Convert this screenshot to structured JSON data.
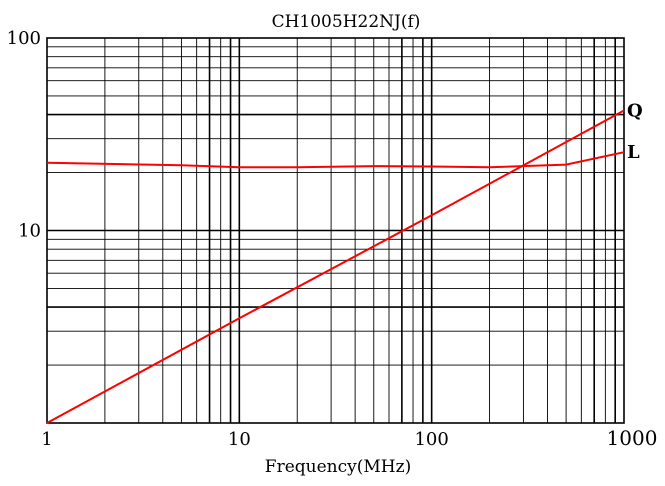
{
  "chart_data": {
    "type": "line",
    "title": "CH1005H22NJ(f)",
    "xlabel": "Frequency(MHz)",
    "ylabel": "",
    "x_scale": "log",
    "y_scale": "log",
    "xlim": [
      1,
      1000
    ],
    "ylim": [
      1,
      100
    ],
    "x_tick_labels": [
      "1",
      "10",
      "100",
      "1000"
    ],
    "y_tick_labels": [
      "10",
      "100"
    ],
    "grid": true,
    "series": [
      {
        "name": "Q",
        "color": "#ff0000",
        "x": [
          1,
          10,
          100,
          1000
        ],
        "y": [
          1.0,
          3.5,
          12.0,
          42.0
        ]
      },
      {
        "name": "L",
        "color": "#ff0000",
        "x": [
          1,
          5,
          10,
          20,
          50,
          100,
          200,
          500,
          1000
        ],
        "y": [
          22.5,
          21.8,
          21.3,
          21.3,
          21.6,
          21.5,
          21.3,
          22.0,
          25.5
        ]
      }
    ]
  }
}
